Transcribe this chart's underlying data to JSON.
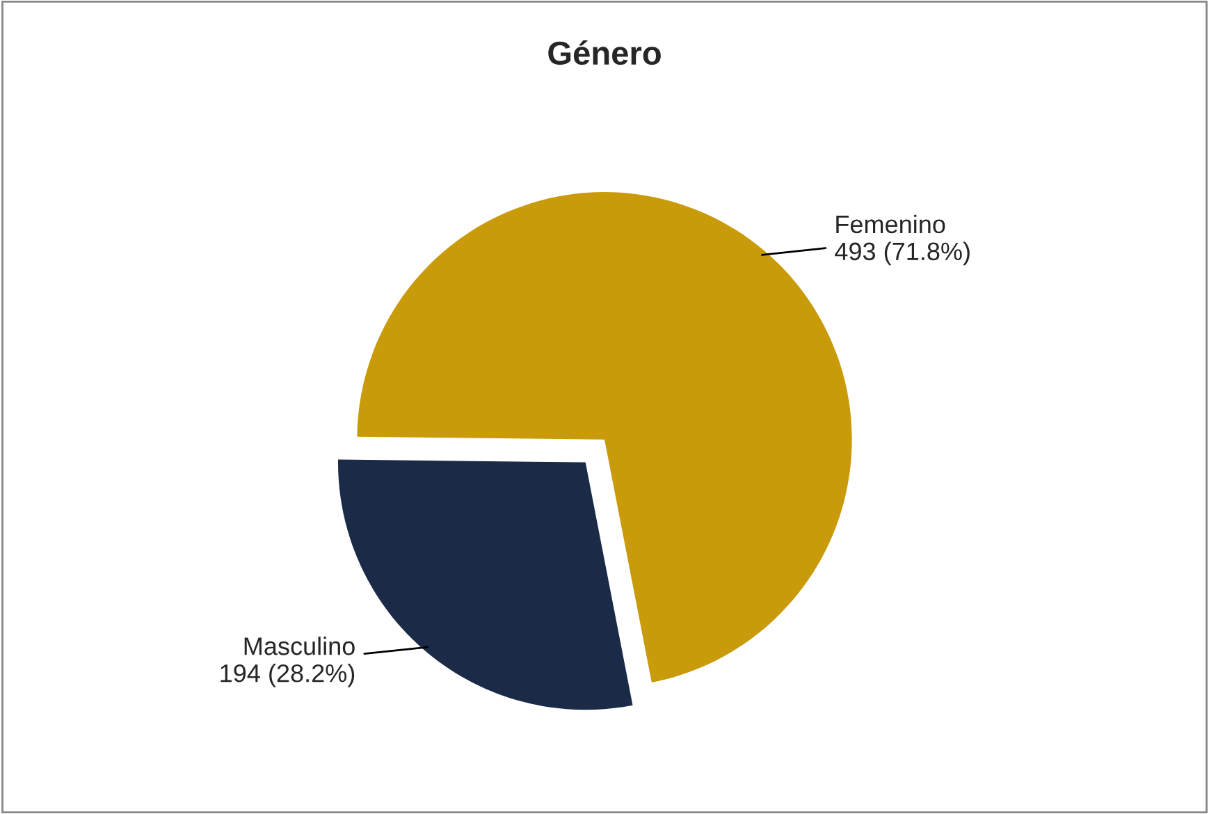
{
  "chart_data": {
    "type": "pie",
    "title": "Género",
    "categories": [
      "Femenino",
      "Masculino"
    ],
    "values": [
      493,
      194
    ],
    "value_labels": [
      "493 (71.8%)",
      "194 (28.2%)"
    ],
    "colors": [
      "#c99a0a",
      "#1b2b47"
    ]
  }
}
